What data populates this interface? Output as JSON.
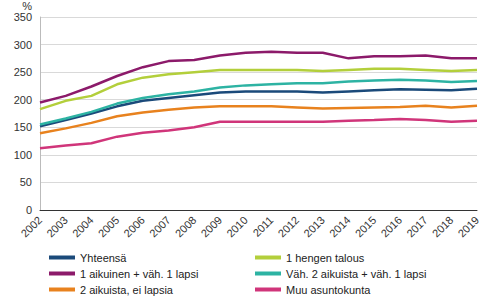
{
  "chart_data": {
    "type": "line",
    "ylabel": "%",
    "categories": [
      "2002",
      "2003",
      "2004",
      "2005",
      "2006",
      "2007",
      "2008",
      "2009",
      "2010",
      "2011",
      "2012",
      "2013",
      "2014",
      "2015",
      "2016",
      "2017",
      "2018",
      "2019"
    ],
    "series": [
      {
        "name": "Yhteensä",
        "color": "#1b4a7a",
        "values": [
          152,
          163,
          175,
          188,
          198,
          203,
          208,
          213,
          215,
          215,
          215,
          213,
          215,
          217,
          219,
          218,
          217,
          220
        ]
      },
      {
        "name": "1 hengen talous",
        "color": "#b3cf3b",
        "values": [
          183,
          198,
          207,
          228,
          240,
          246,
          250,
          254,
          254,
          254,
          254,
          252,
          254,
          256,
          256,
          254,
          252,
          254
        ]
      },
      {
        "name": "1 aikuinen + väh. 1 lapsi",
        "color": "#8c1a6a",
        "values": [
          195,
          207,
          224,
          243,
          259,
          270,
          272,
          280,
          285,
          287,
          285,
          285,
          275,
          279,
          279,
          280,
          275,
          275
        ]
      },
      {
        "name": "Väh. 2 aikuista + väh. 1 lapsi",
        "color": "#2db3a3",
        "values": [
          155,
          166,
          178,
          193,
          203,
          210,
          215,
          222,
          226,
          228,
          230,
          230,
          233,
          235,
          236,
          235,
          232,
          234
        ]
      },
      {
        "name": "2 aikuista, ei lapsia",
        "color": "#e8821e",
        "values": [
          139,
          148,
          158,
          170,
          177,
          182,
          186,
          188,
          188,
          188,
          186,
          184,
          185,
          186,
          187,
          189,
          186,
          189
        ]
      },
      {
        "name": "Muu asuntokunta",
        "color": "#d0357a",
        "values": [
          112,
          117,
          121,
          133,
          140,
          144,
          150,
          160,
          160,
          160,
          160,
          160,
          162,
          163,
          165,
          163,
          160,
          162
        ]
      }
    ],
    "ylim": [
      0,
      350
    ],
    "yticks": [
      0,
      50,
      100,
      150,
      200,
      250,
      300,
      350
    ],
    "grid": true,
    "legend": "bottom"
  }
}
